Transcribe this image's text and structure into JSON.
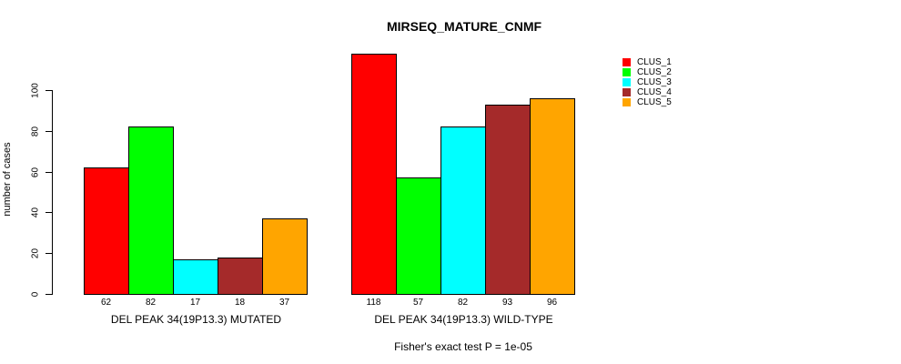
{
  "title": "MIRSEQ_MATURE_CNMF",
  "chart_data": {
    "type": "bar",
    "title": "MIRSEQ_MATURE_CNMF",
    "ylabel": "number of cases",
    "xlabel": "",
    "ylim": [
      0,
      100
    ],
    "yticks": [
      0,
      20,
      40,
      60,
      80,
      100
    ],
    "grid": false,
    "legend_position": "right",
    "series_labels": [
      "CLUS_1",
      "CLUS_2",
      "CLUS_3",
      "CLUS_4",
      "CLUS_5"
    ],
    "colors": [
      "#FF0000",
      "#00FF00",
      "#00FFFF",
      "#A52A2A",
      "#FFA500"
    ],
    "categories": [
      "DEL PEAK 34(19P13.3) MUTATED",
      "DEL PEAK 34(19P13.3) WILD-TYPE"
    ],
    "groups": [
      {
        "label": "DEL PEAK 34(19P13.3) MUTATED",
        "values": [
          62,
          82,
          17,
          18,
          37
        ]
      },
      {
        "label": "DEL PEAK 34(19P13.3) WILD-TYPE",
        "values": [
          118,
          57,
          82,
          93,
          96
        ]
      }
    ],
    "bar_value_labels_shown": true,
    "annotation": "Fisher's exact test P = 1e-05"
  }
}
